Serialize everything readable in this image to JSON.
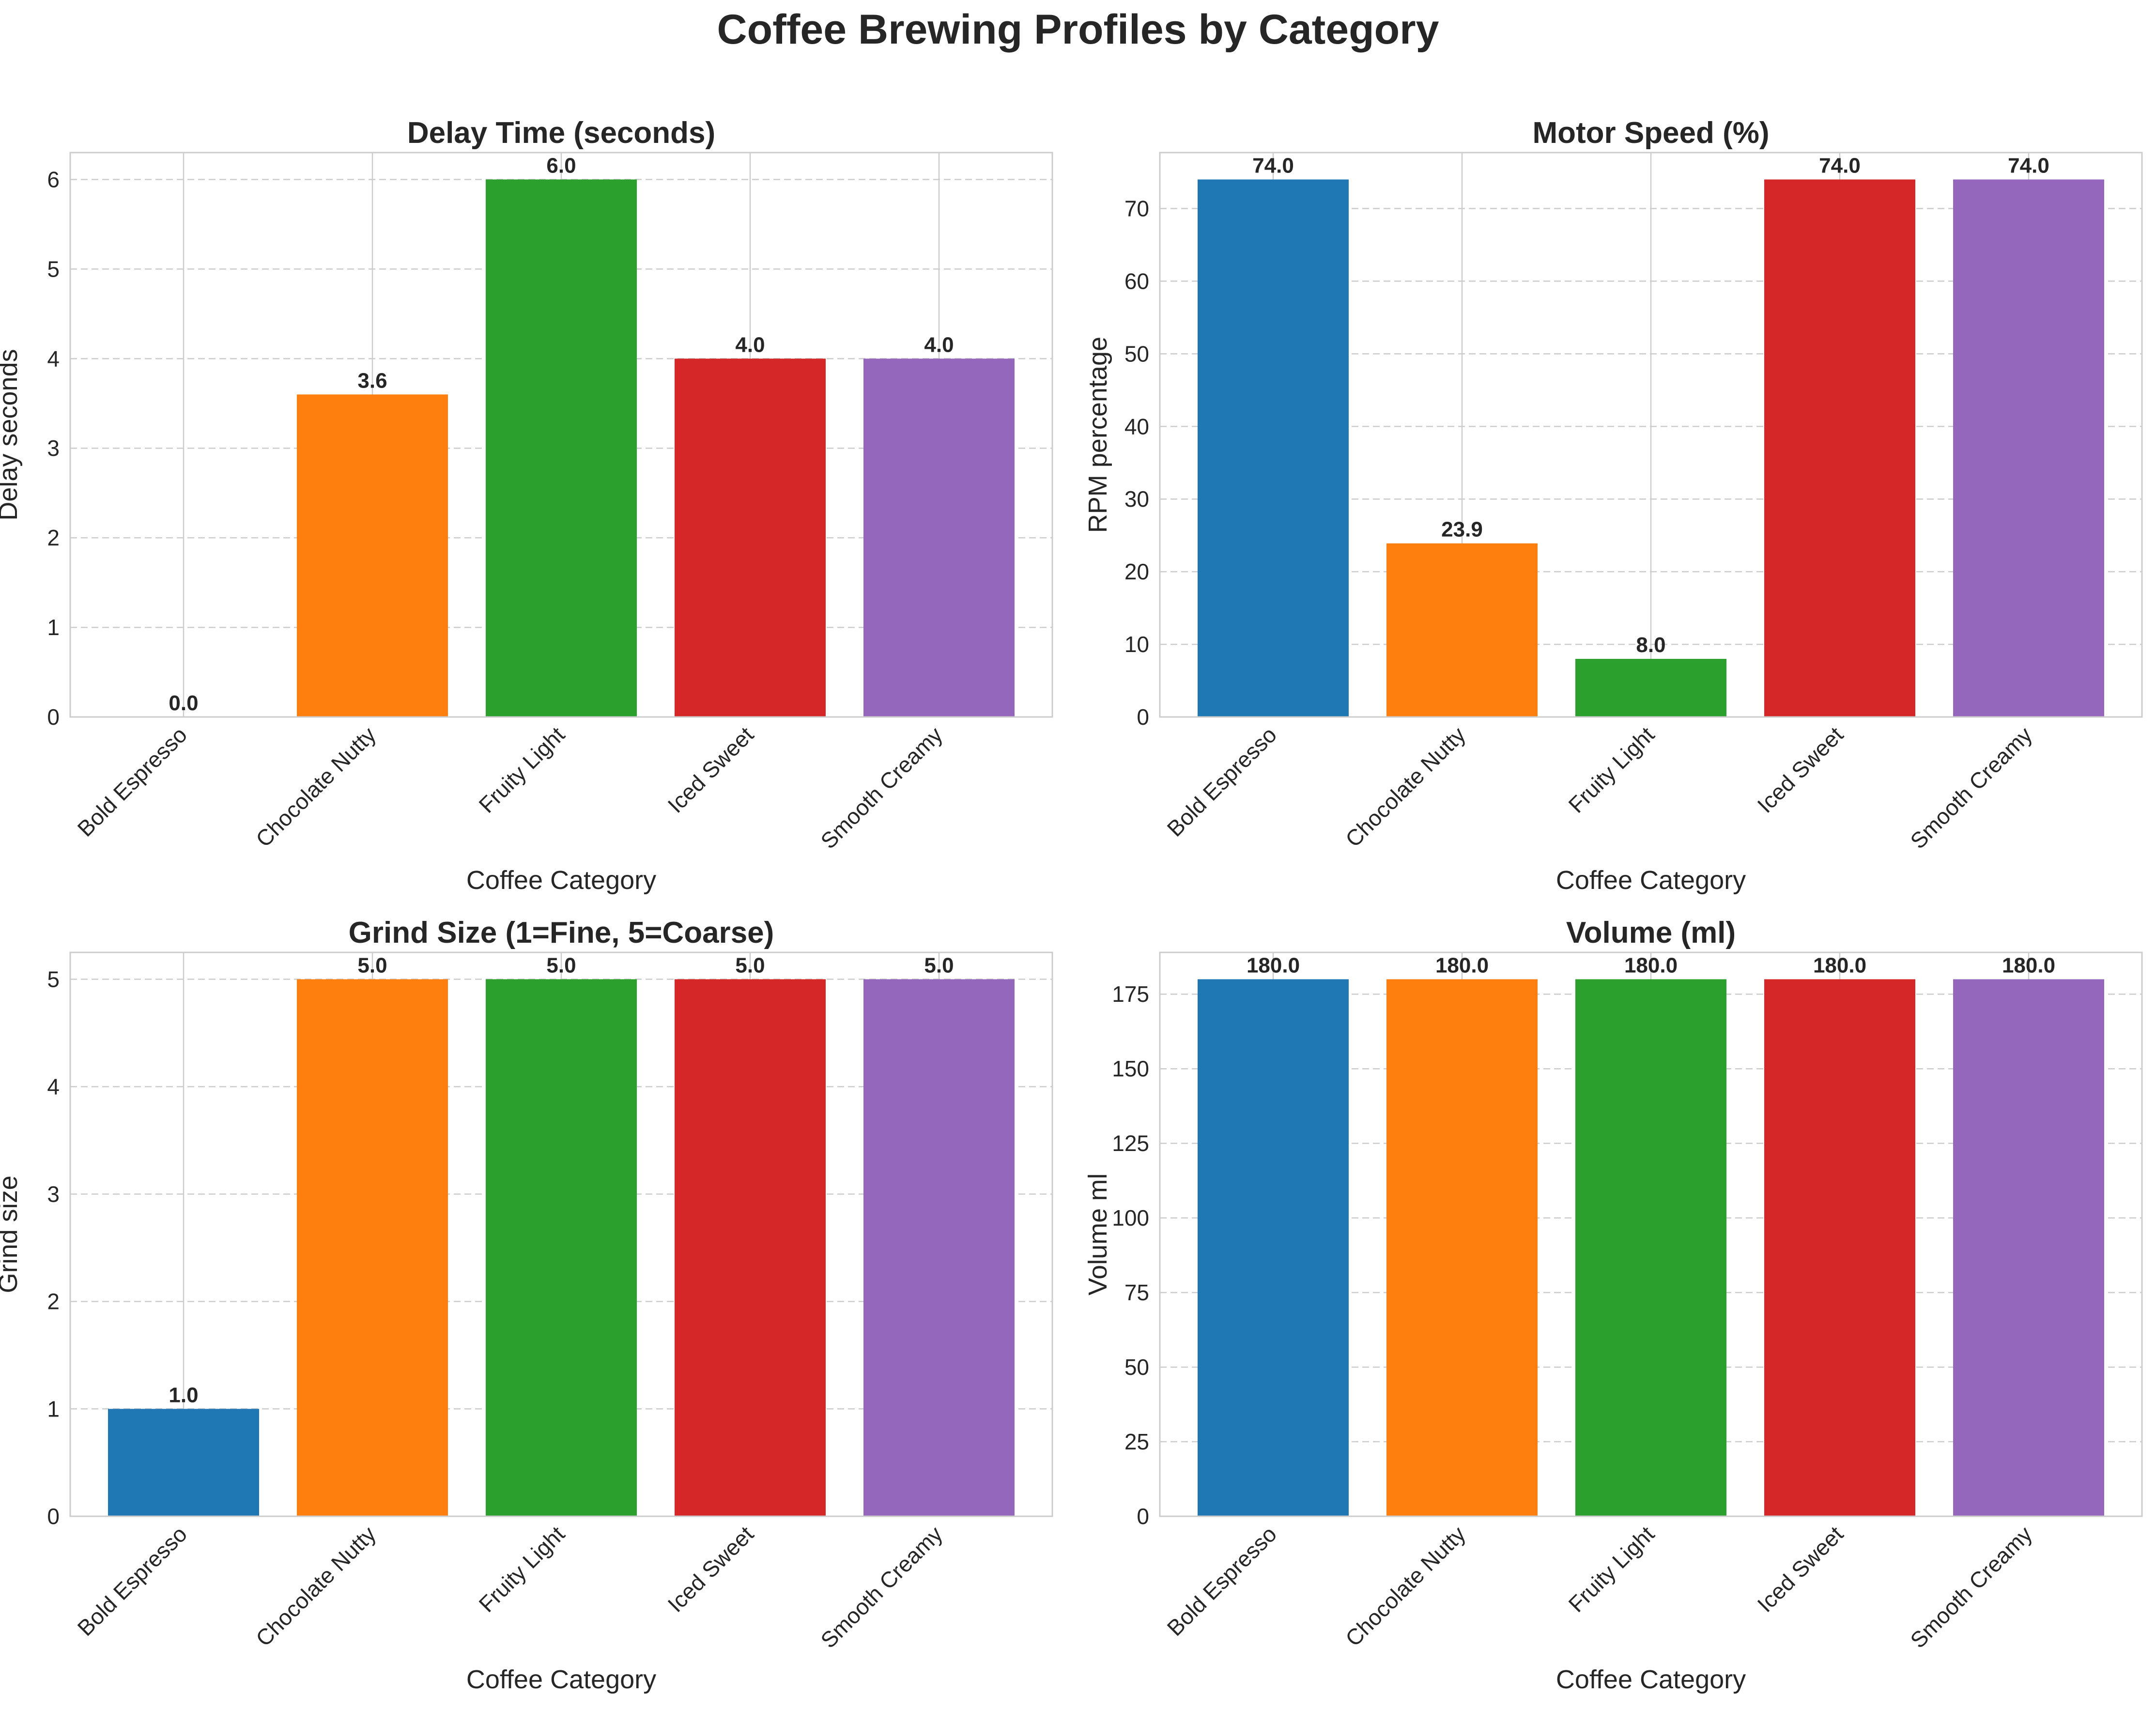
{
  "figure": {
    "title": "Coffee Brewing Profiles by Category"
  },
  "colors": [
    "#1f77b4",
    "#ff7f0e",
    "#2ca02c",
    "#d62728",
    "#9467bd"
  ],
  "chart_data": [
    {
      "type": "bar",
      "title": "Delay Time (seconds)",
      "xlabel": "Coffee Category",
      "ylabel": "Delay seconds",
      "categories": [
        "Bold Espresso",
        "Chocolate Nutty",
        "Fruity Light",
        "Iced Sweet",
        "Smooth Creamy"
      ],
      "values": [
        0.0,
        3.6,
        6.0,
        4.0,
        4.0
      ],
      "value_labels": [
        "0.0",
        "3.6",
        "6.0",
        "4.0",
        "4.0"
      ],
      "ylim": [
        0,
        6.3
      ],
      "yticks": [
        0,
        1,
        2,
        3,
        4,
        5,
        6
      ],
      "grid": true
    },
    {
      "type": "bar",
      "title": "Motor Speed (%)",
      "xlabel": "Coffee Category",
      "ylabel": "RPM percentage",
      "categories": [
        "Bold Espresso",
        "Chocolate Nutty",
        "Fruity Light",
        "Iced Sweet",
        "Smooth Creamy"
      ],
      "values": [
        74.0,
        23.9,
        8.0,
        74.0,
        74.0
      ],
      "value_labels": [
        "74.0",
        "23.9",
        "8.0",
        "74.0",
        "74.0"
      ],
      "ylim": [
        0,
        77.7
      ],
      "yticks": [
        0,
        10,
        20,
        30,
        40,
        50,
        60,
        70
      ],
      "grid": true
    },
    {
      "type": "bar",
      "title": "Grind Size (1=Fine, 5=Coarse)",
      "xlabel": "Coffee Category",
      "ylabel": "Grind size",
      "categories": [
        "Bold Espresso",
        "Chocolate Nutty",
        "Fruity Light",
        "Iced Sweet",
        "Smooth Creamy"
      ],
      "values": [
        1.0,
        5.0,
        5.0,
        5.0,
        5.0
      ],
      "value_labels": [
        "1.0",
        "5.0",
        "5.0",
        "5.0",
        "5.0"
      ],
      "ylim": [
        0,
        5.25
      ],
      "yticks": [
        0,
        1,
        2,
        3,
        4,
        5
      ],
      "grid": true
    },
    {
      "type": "bar",
      "title": "Volume (ml)",
      "xlabel": "Coffee Category",
      "ylabel": "Volume ml",
      "categories": [
        "Bold Espresso",
        "Chocolate Nutty",
        "Fruity Light",
        "Iced Sweet",
        "Smooth Creamy"
      ],
      "values": [
        180.0,
        180.0,
        180.0,
        180.0,
        180.0
      ],
      "value_labels": [
        "180.0",
        "180.0",
        "180.0",
        "180.0",
        "180.0"
      ],
      "ylim": [
        0,
        189
      ],
      "yticks": [
        0,
        25,
        50,
        75,
        100,
        125,
        150,
        175
      ],
      "grid": true
    }
  ]
}
